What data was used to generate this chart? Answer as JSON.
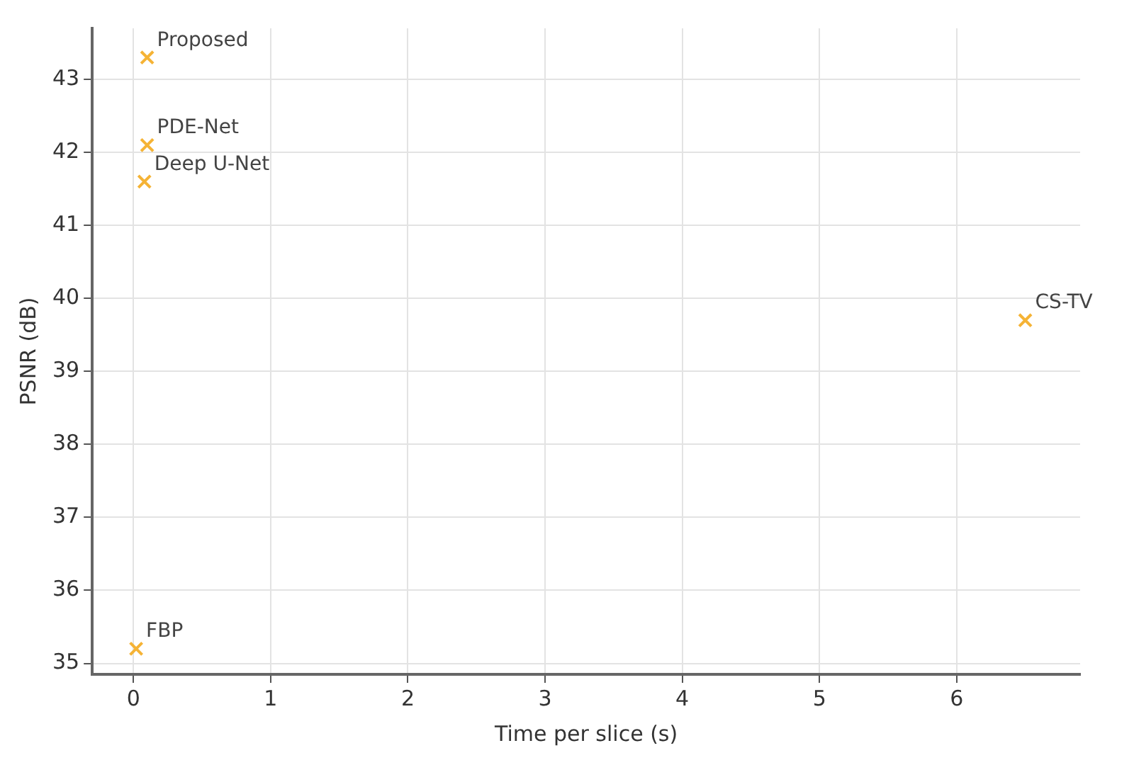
{
  "chart_data": {
    "type": "scatter",
    "xlabel": "Time per slice (s)",
    "ylabel": "PSNR (dB)",
    "x": [
      0.1,
      0.1,
      0.08,
      6.5,
      0.02
    ],
    "series": [
      {
        "color": "#f5b335",
        "values": [
          43.3,
          42.1,
          41.6,
          39.7,
          35.2
        ]
      }
    ],
    "annotations": [
      {
        "text": "Proposed",
        "x": 0.1,
        "y": 43.3
      },
      {
        "text": "PDE-Net",
        "x": 0.1,
        "y": 42.1
      },
      {
        "text": "Deep U-Net",
        "x": 0.08,
        "y": 41.6
      },
      {
        "text": "CS-TV",
        "x": 6.5,
        "y": 39.7
      },
      {
        "text": "FBP",
        "x": 0.02,
        "y": 35.2
      }
    ],
    "xlim": [
      -0.3,
      6.9
    ],
    "xticks": [
      0,
      1,
      2,
      3,
      4,
      5,
      6
    ],
    "ylim": [
      34.85,
      43.7
    ],
    "yticks": [
      35,
      36,
      37,
      38,
      39,
      40,
      41,
      42,
      43
    ],
    "grid": true,
    "marker": "cross",
    "legend": false
  }
}
